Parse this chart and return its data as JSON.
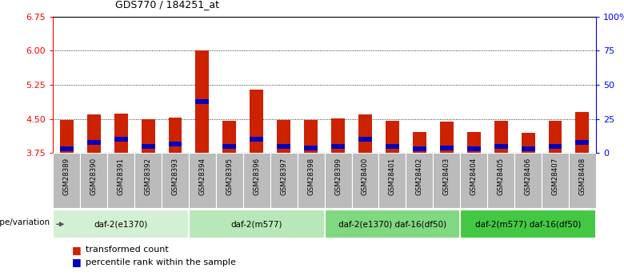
{
  "title": "GDS770 / 184251_at",
  "samples": [
    "GSM28389",
    "GSM28390",
    "GSM28391",
    "GSM28392",
    "GSM28393",
    "GSM28394",
    "GSM28395",
    "GSM28396",
    "GSM28397",
    "GSM28398",
    "GSM28399",
    "GSM28400",
    "GSM28401",
    "GSM28402",
    "GSM28403",
    "GSM28404",
    "GSM28405",
    "GSM28406",
    "GSM28407",
    "GSM28408"
  ],
  "transformed_count": [
    4.47,
    4.6,
    4.62,
    4.49,
    4.54,
    6.01,
    4.46,
    5.15,
    4.48,
    4.47,
    4.51,
    4.6,
    4.46,
    4.21,
    4.44,
    4.21,
    4.46,
    4.2,
    4.46,
    4.65
  ],
  "percentile_rank": [
    3,
    8,
    10,
    5,
    7,
    38,
    5,
    10,
    5,
    4,
    5,
    10,
    5,
    3,
    4,
    3,
    5,
    3,
    5,
    8
  ],
  "y_min": 3.75,
  "y_max": 6.75,
  "y_ticks_left": [
    3.75,
    4.5,
    5.25,
    6.0,
    6.75
  ],
  "y_ticks_right": [
    0,
    25,
    50,
    75,
    100
  ],
  "right_y_labels": [
    "0",
    "25",
    "50",
    "75",
    "100%"
  ],
  "groups": [
    {
      "label": "daf-2(e1370)",
      "start": 0,
      "end": 4,
      "color": "#d4f0d4"
    },
    {
      "label": "daf-2(m577)",
      "start": 5,
      "end": 9,
      "color": "#b8e8b8"
    },
    {
      "label": "daf-2(e1370) daf-16(df50)",
      "start": 10,
      "end": 14,
      "color": "#80d880"
    },
    {
      "label": "daf-2(m577) daf-16(df50)",
      "start": 15,
      "end": 19,
      "color": "#44c844"
    }
  ],
  "bar_color_red": "#cc2200",
  "bar_color_blue": "#0000bb",
  "bar_width": 0.5,
  "genotype_label": "genotype/variation",
  "legend_red": "transformed count",
  "legend_blue": "percentile rank within the sample",
  "background_color": "#ffffff",
  "grid_color": "#000000",
  "sample_box_color": "#bbbbbb"
}
